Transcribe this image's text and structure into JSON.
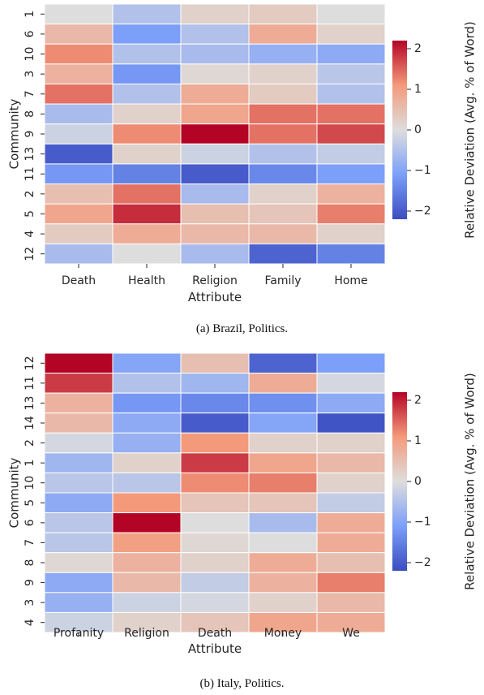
{
  "captions": {
    "a": "(a) Brazil, Politics.",
    "b": "(b) Italy, Politics."
  },
  "chart_data": [
    {
      "type": "heatmap",
      "xlabel": "Attribute",
      "ylabel": "Community",
      "colorbar_label": "Relative Deviation (Avg. % of Word)",
      "colorbar_ticks": [
        "2",
        "1",
        "0",
        "−1",
        "−2"
      ],
      "colorbar_tick_values": [
        2,
        1,
        0,
        -1,
        -2
      ],
      "vlim": [
        -2.2,
        2.2
      ],
      "colormap": "coolwarm",
      "columns": [
        "Death",
        "Health",
        "Religion",
        "Family",
        "Home"
      ],
      "rows": [
        "1",
        "6",
        "10",
        "3",
        "7",
        "8",
        "9",
        "13",
        "11",
        "2",
        "5",
        "4",
        "12"
      ],
      "values": [
        [
          0.0,
          -0.5,
          0.2,
          0.3,
          0.0
        ],
        [
          0.6,
          -1.1,
          -0.5,
          0.8,
          0.2
        ],
        [
          1.2,
          -0.5,
          -0.6,
          -0.8,
          -0.9
        ],
        [
          0.7,
          -1.2,
          0.1,
          0.2,
          -0.4
        ],
        [
          1.4,
          -0.5,
          0.8,
          0.3,
          -0.5
        ],
        [
          -0.6,
          0.2,
          0.9,
          1.4,
          1.4
        ],
        [
          -0.2,
          1.2,
          2.2,
          1.4,
          1.7
        ],
        [
          -2.0,
          0.2,
          -0.2,
          -0.5,
          -0.3
        ],
        [
          -1.2,
          -1.5,
          -2.0,
          -1.4,
          -1.1
        ],
        [
          0.5,
          1.4,
          -0.6,
          0.2,
          0.7
        ],
        [
          0.9,
          1.9,
          0.5,
          0.4,
          1.3
        ],
        [
          0.3,
          0.8,
          0.6,
          0.6,
          0.2
        ],
        [
          -0.6,
          0.0,
          -0.6,
          -1.9,
          -1.5
        ]
      ]
    },
    {
      "type": "heatmap",
      "xlabel": "Attribute",
      "ylabel": "Community",
      "colorbar_label": "Relative Deviation (Avg. % of Word)",
      "colorbar_ticks": [
        "2",
        "1",
        "0",
        "−1",
        "−2"
      ],
      "colorbar_tick_values": [
        2,
        1,
        0,
        -1,
        -2
      ],
      "vlim": [
        -2.2,
        2.2
      ],
      "colormap": "coolwarm",
      "columns": [
        "Profanity",
        "Religion",
        "Death",
        "Money",
        "We"
      ],
      "rows": [
        "12",
        "11",
        "13",
        "14",
        "2",
        "1",
        "10",
        "5",
        "6",
        "7",
        "8",
        "9",
        "3",
        "4"
      ],
      "values": [
        [
          2.2,
          -1.0,
          0.5,
          -1.9,
          -1.1
        ],
        [
          1.8,
          -0.5,
          -0.7,
          0.8,
          -0.1
        ],
        [
          0.7,
          -1.2,
          -1.4,
          -1.3,
          -0.9
        ],
        [
          0.6,
          -0.9,
          -2.0,
          -1.0,
          -2.1
        ],
        [
          -0.1,
          -0.8,
          1.1,
          0.2,
          0.2
        ],
        [
          -0.7,
          0.2,
          1.8,
          0.9,
          0.6
        ],
        [
          -0.4,
          -0.4,
          1.2,
          1.3,
          0.2
        ],
        [
          -0.9,
          1.1,
          0.4,
          0.4,
          -0.3
        ],
        [
          -0.4,
          2.2,
          0.0,
          -0.6,
          0.8
        ],
        [
          -0.4,
          1.0,
          0.1,
          0.0,
          0.8
        ],
        [
          0.1,
          0.7,
          0.2,
          0.8,
          0.5
        ],
        [
          -0.9,
          0.6,
          -0.3,
          0.7,
          1.3
        ],
        [
          -0.8,
          -0.2,
          -0.1,
          0.2,
          0.6
        ],
        [
          -0.2,
          0.2,
          0.4,
          0.9,
          0.8
        ]
      ]
    }
  ]
}
